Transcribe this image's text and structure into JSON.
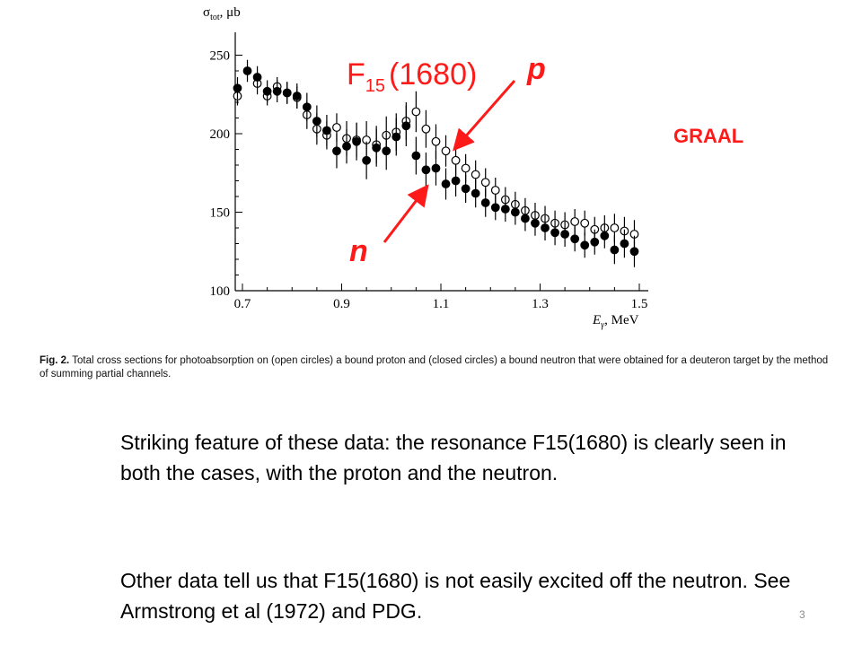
{
  "chart_data": {
    "type": "scatter",
    "title": "",
    "xlabel": "Eγ, MeV",
    "xlabel_main": "E",
    "xlabel_sub": "γ",
    "xlabel_unit": ", MeV",
    "ylabel_main": "σ",
    "ylabel_sub": "tot",
    "ylabel_unit": ", μb",
    "xlim": [
      0.68,
      1.5
    ],
    "ylim": [
      100,
      260
    ],
    "x_ticks": [
      0.7,
      0.9,
      1.1,
      1.3,
      1.5
    ],
    "x_tick_labels": [
      "0.7",
      "0.9",
      "1.1",
      "1.3",
      "1.5"
    ],
    "y_ticks": [
      100,
      150,
      200,
      250
    ],
    "y_tick_labels": [
      "100",
      "150",
      "200",
      "250"
    ],
    "grid": false,
    "series": [
      {
        "marker": "open-circle",
        "points": [
          [
            0.69,
            224,
            6
          ],
          [
            0.73,
            232,
            7
          ],
          [
            0.75,
            224,
            6
          ],
          [
            0.77,
            230,
            6
          ],
          [
            0.79,
            226,
            7
          ],
          [
            0.81,
            223,
            7
          ],
          [
            0.83,
            212,
            9
          ],
          [
            0.85,
            203,
            10
          ],
          [
            0.87,
            199,
            9
          ],
          [
            0.89,
            204,
            9
          ],
          [
            0.91,
            197,
            11
          ],
          [
            0.93,
            196,
            11
          ],
          [
            0.95,
            196,
            12
          ],
          [
            0.97,
            193,
            12
          ],
          [
            0.99,
            199,
            12
          ],
          [
            1.01,
            201,
            12
          ],
          [
            1.03,
            208,
            12
          ],
          [
            1.05,
            214,
            13
          ],
          [
            1.07,
            203,
            12
          ],
          [
            1.09,
            195,
            11
          ],
          [
            1.11,
            189,
            10
          ],
          [
            1.13,
            183,
            10
          ],
          [
            1.15,
            178,
            9
          ],
          [
            1.17,
            174,
            9
          ],
          [
            1.19,
            169,
            9
          ],
          [
            1.21,
            164,
            8
          ],
          [
            1.23,
            158,
            8
          ],
          [
            1.25,
            155,
            8
          ],
          [
            1.27,
            151,
            8
          ],
          [
            1.29,
            148,
            8
          ],
          [
            1.31,
            146,
            8
          ],
          [
            1.33,
            143,
            8
          ],
          [
            1.35,
            142,
            8
          ],
          [
            1.37,
            144,
            8
          ],
          [
            1.39,
            143,
            8
          ],
          [
            1.41,
            139,
            8
          ],
          [
            1.43,
            140,
            8
          ],
          [
            1.45,
            140,
            9
          ],
          [
            1.47,
            138,
            9
          ],
          [
            1.49,
            136,
            9
          ]
        ]
      },
      {
        "marker": "filled-circle",
        "points": [
          [
            0.69,
            229,
            7
          ],
          [
            0.71,
            240,
            7
          ],
          [
            0.73,
            236,
            7
          ],
          [
            0.75,
            227,
            7
          ],
          [
            0.77,
            227,
            7
          ],
          [
            0.79,
            226,
            7
          ],
          [
            0.81,
            224,
            8
          ],
          [
            0.83,
            217,
            9
          ],
          [
            0.85,
            208,
            10
          ],
          [
            0.87,
            202,
            10
          ],
          [
            0.89,
            189,
            11
          ],
          [
            0.91,
            192,
            11
          ],
          [
            0.93,
            195,
            12
          ],
          [
            0.95,
            183,
            12
          ],
          [
            0.97,
            191,
            12
          ],
          [
            0.99,
            189,
            12
          ],
          [
            1.01,
            198,
            12
          ],
          [
            1.03,
            205,
            13
          ],
          [
            1.05,
            186,
            12
          ],
          [
            1.07,
            177,
            11
          ],
          [
            1.09,
            178,
            11
          ],
          [
            1.11,
            168,
            10
          ],
          [
            1.13,
            170,
            10
          ],
          [
            1.15,
            165,
            9
          ],
          [
            1.17,
            162,
            9
          ],
          [
            1.19,
            156,
            9
          ],
          [
            1.21,
            153,
            8
          ],
          [
            1.23,
            152,
            8
          ],
          [
            1.25,
            150,
            8
          ],
          [
            1.27,
            146,
            8
          ],
          [
            1.29,
            143,
            8
          ],
          [
            1.31,
            140,
            8
          ],
          [
            1.33,
            137,
            8
          ],
          [
            1.35,
            136,
            8
          ],
          [
            1.37,
            133,
            8
          ],
          [
            1.39,
            129,
            8
          ],
          [
            1.41,
            131,
            8
          ],
          [
            1.43,
            135,
            8
          ],
          [
            1.45,
            126,
            9
          ],
          [
            1.47,
            130,
            9
          ],
          [
            1.49,
            125,
            10
          ]
        ]
      }
    ],
    "annotations": {
      "f15_main": "F",
      "f15_sub": "15",
      "f15_rest": "(1680)",
      "p": "p",
      "n": "n",
      "graal": "GRAAL"
    },
    "accent_color": "#ff1a1a"
  },
  "caption": {
    "label": "Fig. 2.",
    "text": "Total cross sections for photoabsorption on (open circles) a bound proton and (closed circles) a bound neutron that were obtained for a deuteron target by the method of summing partial channels."
  },
  "body": {
    "paragraph1": "Striking feature of these data:  the resonance F15(1680) is clearly seen in both the cases, with the proton and the neutron.",
    "paragraph2": "Other data tell us that  F15(1680) is not easily excited off the neutron. See Armstrong et al (1972) and PDG."
  },
  "slide_number": "3"
}
